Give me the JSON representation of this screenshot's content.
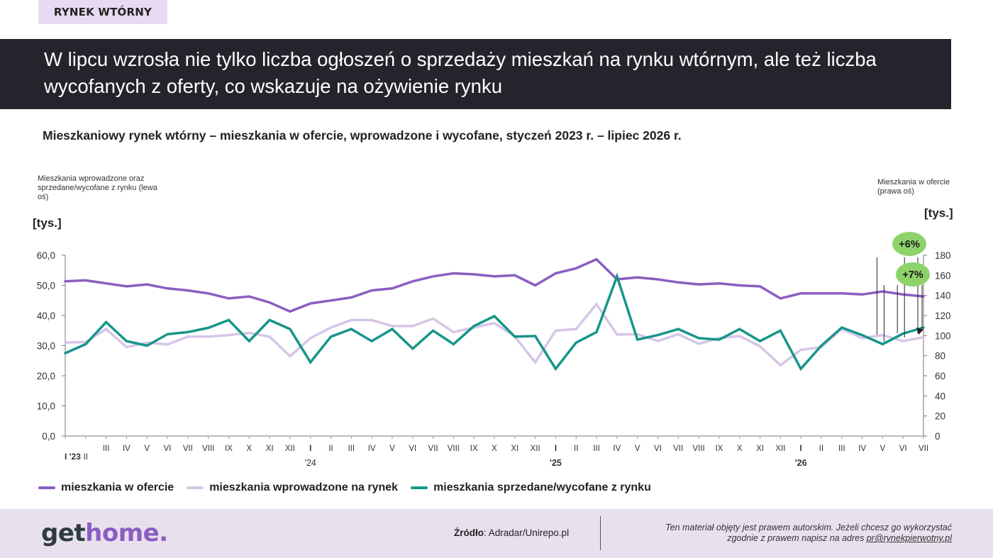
{
  "tag": "RYNEK WTÓRNY",
  "headline": "W lipcu wzrosła nie tylko liczba ogłoszeń o sprzedaży mieszkań na rynku wtórnym, ale też liczba wycofanych z oferty, co wskazuje na ożywienie rynku",
  "subtitle": "Mieszkaniowy rynek wtórny – mieszkania w ofercie, wprowadzone i wycofane, styczeń 2023 r. – lipiec 2026 r.",
  "left_axis_note": "Mieszkania wprowadzone oraz sprzedane/wycofane z rynku (lewa oś)",
  "right_axis_note": "Mieszkania w ofercie (prawa oś)",
  "left_unit": "[tys.]",
  "right_unit": "[tys.]",
  "colors": {
    "offer": "#8a5ec2",
    "introduced": "#d6c6e6",
    "sold": "#17968a",
    "badge": "#8dd36a"
  },
  "chart_data": {
    "type": "line",
    "x": [
      "I",
      "II",
      "III",
      "IV",
      "V",
      "VI",
      "VII",
      "VIII",
      "IX",
      "X",
      "XI",
      "XII",
      "I",
      "II",
      "III",
      "IV",
      "V",
      "VI",
      "VII",
      "VIII",
      "IX",
      "X",
      "XI",
      "XII",
      "I",
      "II",
      "III",
      "IV",
      "V",
      "VI",
      "VII",
      "VIII",
      "IX",
      "X",
      "XI",
      "XII",
      "I",
      "II",
      "III",
      "IV",
      "V",
      "VI",
      "VII"
    ],
    "x_tick_labels": [
      "I '23",
      "II",
      "III",
      "IV",
      "V",
      "VI",
      "VII",
      "VIII",
      "IX",
      "X",
      "XI",
      "XII",
      "I",
      "II",
      "III",
      "IV",
      "V",
      "VI",
      "VII",
      "VIII",
      "IX",
      "X",
      "XI",
      "XII",
      "I",
      "II",
      "III",
      "IV",
      "V",
      "VI",
      "VII",
      "VIII",
      "IX",
      "X",
      "XI",
      "XII",
      "I",
      "II",
      "III",
      "IV",
      "V",
      "VI",
      "VII"
    ],
    "year_labels": [
      {
        "index": 12,
        "label": "'24"
      },
      {
        "index": 24,
        "label": "'25"
      },
      {
        "index": 36,
        "label": "'26"
      }
    ],
    "y_left": {
      "label": "Mieszkania wprowadzone oraz sprzedane/wycofane z rynku (lewa oś)",
      "lim": [
        0,
        60
      ],
      "ticks": [
        "0,0",
        "10,0",
        "20,0",
        "30,0",
        "40,0",
        "50,0",
        "60,0"
      ]
    },
    "y_right": {
      "label": "Mieszkania w ofercie (prawa oś)",
      "lim": [
        0,
        180
      ],
      "ticks": [
        "0",
        "20",
        "40",
        "60",
        "80",
        "100",
        "120",
        "140",
        "160",
        "180"
      ]
    },
    "series": [
      {
        "name": "mieszkania w ofercie",
        "axis": "right",
        "values": [
          154,
          155,
          152,
          149,
          151,
          147,
          145,
          142,
          137,
          139,
          133,
          124,
          132,
          135,
          138,
          145,
          147,
          154,
          159,
          162,
          161,
          159,
          160,
          150,
          162,
          167,
          176,
          156,
          158,
          156,
          153,
          151,
          152,
          150,
          149,
          137,
          142,
          142,
          142,
          141,
          144,
          141,
          139
        ]
      },
      {
        "name": "mieszkania wprowadzone na rynek",
        "axis": "left",
        "values": [
          31,
          31.2,
          35.5,
          29.5,
          31,
          30.4,
          33,
          33,
          33.5,
          34.2,
          33,
          26.5,
          32.5,
          36,
          38.5,
          38.5,
          36.5,
          36.5,
          39,
          34.5,
          36,
          37.5,
          33,
          24.5,
          35,
          35.5,
          43.8,
          33.7,
          33.8,
          31.5,
          33.8,
          30.6,
          32.5,
          33.2,
          29.8,
          23.5,
          28.6,
          29.5,
          35.5,
          32.5,
          33.5,
          31.5,
          32.8
        ]
      },
      {
        "name": "mieszkania sprzedane/wycofane z rynku",
        "axis": "left",
        "values": [
          27.5,
          30.5,
          37.8,
          31.5,
          30,
          33.8,
          34.5,
          35.9,
          38.5,
          31.5,
          38.5,
          35.5,
          24.5,
          33,
          35.5,
          31.5,
          35.5,
          29,
          35,
          30.5,
          36.5,
          39.8,
          33,
          33.2,
          22.3,
          31,
          34.5,
          53,
          32,
          33.5,
          35.5,
          32.5,
          32,
          35.5,
          31.5,
          35,
          22.3,
          30,
          36,
          33.5,
          30.5,
          34,
          36
        ]
      }
    ],
    "annotations": [
      "+6%",
      "+7%"
    ],
    "legend": "bottom"
  },
  "footer": {
    "logo_part1": "get",
    "logo_part2": "home.",
    "source_label": "Źródło",
    "source_value": ": Adradar/Unirepo.pl",
    "copyright_line1": "Ten materiał objęty jest prawem autorskim. Jeżeli chcesz go wykorzystać",
    "copyright_line2": "zgodnie z prawem napisz na adres ",
    "email": "pr@rynekpierwotny.pl"
  }
}
